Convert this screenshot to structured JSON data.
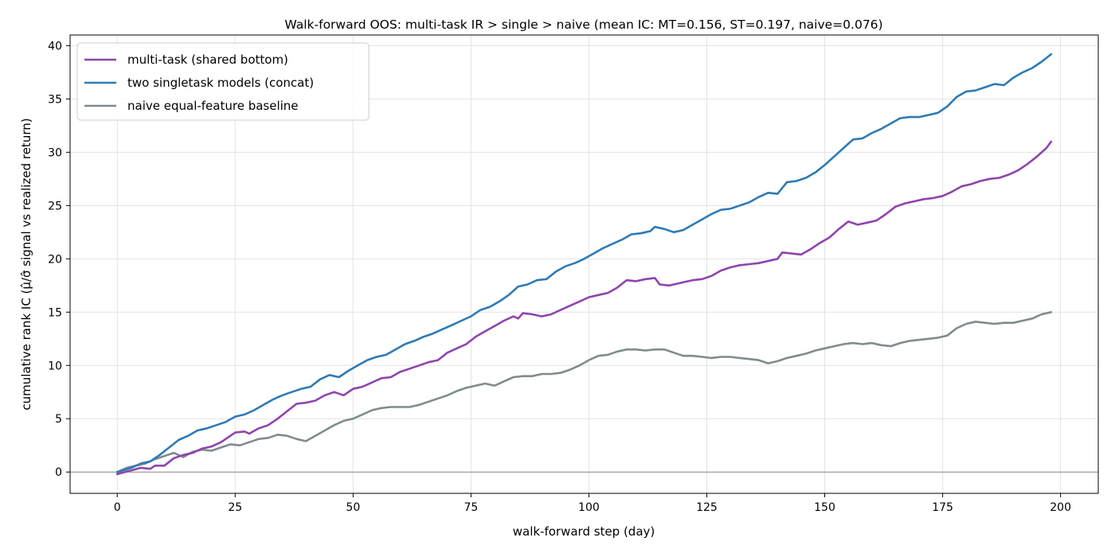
{
  "chart_data": {
    "type": "line",
    "title": "Walk-forward OOS: multi-task IR > single > naive (mean IC: MT=0.156, ST=0.197, naive=0.076)",
    "xlabel": "walk-forward step (day)",
    "ylabel": "cumulative rank IC (μ̂/σ̂ signal vs realized return)",
    "xlim": [
      -10,
      208
    ],
    "ylim": [
      -2,
      41
    ],
    "xticks": [
      0,
      25,
      50,
      75,
      100,
      125,
      150,
      175,
      200
    ],
    "yticks": [
      0,
      5,
      10,
      15,
      20,
      25,
      30,
      35,
      40
    ],
    "grid": true,
    "zero_line": true,
    "legend_position": "top-left",
    "series": [
      {
        "name": "multi-task (shared bottom)",
        "color": "#8e44ad",
        "points": [
          [
            0,
            -0.2
          ],
          [
            5,
            0.4
          ],
          [
            7,
            0.3
          ],
          [
            8,
            0.6
          ],
          [
            10,
            0.6
          ],
          [
            12,
            1.3
          ],
          [
            14,
            1.6
          ],
          [
            16,
            1.8
          ],
          [
            18,
            2.2
          ],
          [
            20,
            2.4
          ],
          [
            22,
            2.8
          ],
          [
            25,
            3.7
          ],
          [
            27,
            3.8
          ],
          [
            28,
            3.6
          ],
          [
            30,
            4.1
          ],
          [
            32,
            4.4
          ],
          [
            34,
            5.0
          ],
          [
            36,
            5.7
          ],
          [
            38,
            6.4
          ],
          [
            40,
            6.5
          ],
          [
            42,
            6.7
          ],
          [
            44,
            7.2
          ],
          [
            46,
            7.5
          ],
          [
            48,
            7.2
          ],
          [
            50,
            7.8
          ],
          [
            52,
            8.0
          ],
          [
            54,
            8.4
          ],
          [
            56,
            8.8
          ],
          [
            58,
            8.9
          ],
          [
            60,
            9.4
          ],
          [
            62,
            9.7
          ],
          [
            64,
            10.0
          ],
          [
            66,
            10.3
          ],
          [
            68,
            10.5
          ],
          [
            70,
            11.2
          ],
          [
            72,
            11.6
          ],
          [
            74,
            12.0
          ],
          [
            76,
            12.7
          ],
          [
            78,
            13.2
          ],
          [
            80,
            13.7
          ],
          [
            82,
            14.2
          ],
          [
            84,
            14.6
          ],
          [
            85,
            14.4
          ],
          [
            86,
            14.9
          ],
          [
            88,
            14.8
          ],
          [
            90,
            14.6
          ],
          [
            92,
            14.8
          ],
          [
            94,
            15.2
          ],
          [
            96,
            15.6
          ],
          [
            98,
            16.0
          ],
          [
            100,
            16.4
          ],
          [
            102,
            16.6
          ],
          [
            104,
            16.8
          ],
          [
            106,
            17.3
          ],
          [
            108,
            18.0
          ],
          [
            110,
            17.9
          ],
          [
            112,
            18.1
          ],
          [
            114,
            18.2
          ],
          [
            115,
            17.6
          ],
          [
            117,
            17.5
          ],
          [
            119,
            17.7
          ],
          [
            122,
            18.0
          ],
          [
            124,
            18.1
          ],
          [
            126,
            18.4
          ],
          [
            128,
            18.9
          ],
          [
            130,
            19.2
          ],
          [
            132,
            19.4
          ],
          [
            134,
            19.5
          ],
          [
            136,
            19.6
          ],
          [
            138,
            19.8
          ],
          [
            140,
            20.0
          ],
          [
            141,
            20.6
          ],
          [
            143,
            20.5
          ],
          [
            145,
            20.4
          ],
          [
            147,
            20.9
          ],
          [
            149,
            21.5
          ],
          [
            151,
            22.0
          ],
          [
            153,
            22.8
          ],
          [
            155,
            23.5
          ],
          [
            157,
            23.2
          ],
          [
            159,
            23.4
          ],
          [
            161,
            23.6
          ],
          [
            163,
            24.2
          ],
          [
            165,
            24.9
          ],
          [
            167,
            25.2
          ],
          [
            169,
            25.4
          ],
          [
            171,
            25.6
          ],
          [
            173,
            25.7
          ],
          [
            175,
            25.9
          ],
          [
            177,
            26.3
          ],
          [
            179,
            26.8
          ],
          [
            181,
            27.0
          ],
          [
            183,
            27.3
          ],
          [
            185,
            27.5
          ],
          [
            187,
            27.6
          ],
          [
            189,
            27.9
          ],
          [
            191,
            28.3
          ],
          [
            193,
            28.9
          ],
          [
            195,
            29.6
          ],
          [
            197,
            30.4
          ],
          [
            198,
            31.0
          ]
        ]
      },
      {
        "name": "two singletask models (concat)",
        "color": "#2e7ab5",
        "points": [
          [
            0,
            0
          ],
          [
            3,
            0.4
          ],
          [
            5,
            0.8
          ],
          [
            7,
            1.0
          ],
          [
            9,
            1.6
          ],
          [
            11,
            2.3
          ],
          [
            13,
            3.0
          ],
          [
            15,
            3.4
          ],
          [
            17,
            3.9
          ],
          [
            19,
            4.1
          ],
          [
            21,
            4.4
          ],
          [
            23,
            4.7
          ],
          [
            25,
            5.2
          ],
          [
            27,
            5.4
          ],
          [
            29,
            5.8
          ],
          [
            31,
            6.3
          ],
          [
            33,
            6.8
          ],
          [
            35,
            7.2
          ],
          [
            37,
            7.5
          ],
          [
            39,
            7.8
          ],
          [
            41,
            8.0
          ],
          [
            43,
            8.7
          ],
          [
            45,
            9.1
          ],
          [
            47,
            8.9
          ],
          [
            49,
            9.5
          ],
          [
            51,
            10.0
          ],
          [
            53,
            10.5
          ],
          [
            55,
            10.8
          ],
          [
            57,
            11.0
          ],
          [
            59,
            11.5
          ],
          [
            61,
            12.0
          ],
          [
            63,
            12.3
          ],
          [
            65,
            12.7
          ],
          [
            67,
            13.0
          ],
          [
            69,
            13.4
          ],
          [
            71,
            13.8
          ],
          [
            73,
            14.2
          ],
          [
            75,
            14.6
          ],
          [
            77,
            15.2
          ],
          [
            79,
            15.5
          ],
          [
            81,
            16.0
          ],
          [
            83,
            16.6
          ],
          [
            85,
            17.4
          ],
          [
            87,
            17.6
          ],
          [
            89,
            18.0
          ],
          [
            91,
            18.1
          ],
          [
            93,
            18.8
          ],
          [
            95,
            19.3
          ],
          [
            97,
            19.6
          ],
          [
            99,
            20.0
          ],
          [
            101,
            20.5
          ],
          [
            103,
            21.0
          ],
          [
            105,
            21.4
          ],
          [
            107,
            21.8
          ],
          [
            109,
            22.3
          ],
          [
            111,
            22.4
          ],
          [
            113,
            22.6
          ],
          [
            114,
            23.0
          ],
          [
            116,
            22.8
          ],
          [
            118,
            22.5
          ],
          [
            120,
            22.7
          ],
          [
            122,
            23.2
          ],
          [
            124,
            23.7
          ],
          [
            126,
            24.2
          ],
          [
            128,
            24.6
          ],
          [
            130,
            24.7
          ],
          [
            132,
            25.0
          ],
          [
            134,
            25.3
          ],
          [
            136,
            25.8
          ],
          [
            138,
            26.2
          ],
          [
            140,
            26.1
          ],
          [
            142,
            27.2
          ],
          [
            144,
            27.3
          ],
          [
            146,
            27.6
          ],
          [
            148,
            28.1
          ],
          [
            150,
            28.8
          ],
          [
            152,
            29.6
          ],
          [
            154,
            30.4
          ],
          [
            156,
            31.2
          ],
          [
            158,
            31.3
          ],
          [
            160,
            31.8
          ],
          [
            162,
            32.2
          ],
          [
            164,
            32.7
          ],
          [
            166,
            33.2
          ],
          [
            168,
            33.3
          ],
          [
            170,
            33.3
          ],
          [
            172,
            33.5
          ],
          [
            174,
            33.7
          ],
          [
            176,
            34.3
          ],
          [
            178,
            35.2
          ],
          [
            180,
            35.7
          ],
          [
            182,
            35.8
          ],
          [
            184,
            36.1
          ],
          [
            186,
            36.4
          ],
          [
            188,
            36.3
          ],
          [
            190,
            37.0
          ],
          [
            192,
            37.5
          ],
          [
            194,
            37.9
          ],
          [
            196,
            38.5
          ],
          [
            198,
            39.2
          ]
        ]
      },
      {
        "name": "naive equal-feature baseline",
        "color": "#7f8c8d",
        "points": [
          [
            0,
            0
          ],
          [
            2,
            0.4
          ],
          [
            4,
            0.6
          ],
          [
            6,
            0.8
          ],
          [
            8,
            1.2
          ],
          [
            10,
            1.5
          ],
          [
            12,
            1.8
          ],
          [
            14,
            1.4
          ],
          [
            16,
            1.9
          ],
          [
            18,
            2.1
          ],
          [
            20,
            2.0
          ],
          [
            22,
            2.3
          ],
          [
            24,
            2.6
          ],
          [
            26,
            2.5
          ],
          [
            28,
            2.8
          ],
          [
            30,
            3.1
          ],
          [
            32,
            3.2
          ],
          [
            34,
            3.5
          ],
          [
            36,
            3.4
          ],
          [
            38,
            3.1
          ],
          [
            40,
            2.9
          ],
          [
            42,
            3.4
          ],
          [
            44,
            3.9
          ],
          [
            46,
            4.4
          ],
          [
            48,
            4.8
          ],
          [
            50,
            5.0
          ],
          [
            52,
            5.4
          ],
          [
            54,
            5.8
          ],
          [
            56,
            6.0
          ],
          [
            58,
            6.1
          ],
          [
            60,
            6.1
          ],
          [
            62,
            6.1
          ],
          [
            64,
            6.3
          ],
          [
            66,
            6.6
          ],
          [
            68,
            6.9
          ],
          [
            70,
            7.2
          ],
          [
            72,
            7.6
          ],
          [
            74,
            7.9
          ],
          [
            76,
            8.1
          ],
          [
            78,
            8.3
          ],
          [
            80,
            8.1
          ],
          [
            82,
            8.5
          ],
          [
            84,
            8.9
          ],
          [
            86,
            9.0
          ],
          [
            88,
            9.0
          ],
          [
            90,
            9.2
          ],
          [
            92,
            9.2
          ],
          [
            94,
            9.3
          ],
          [
            96,
            9.6
          ],
          [
            98,
            10.0
          ],
          [
            100,
            10.5
          ],
          [
            102,
            10.9
          ],
          [
            104,
            11.0
          ],
          [
            106,
            11.3
          ],
          [
            108,
            11.5
          ],
          [
            110,
            11.5
          ],
          [
            112,
            11.4
          ],
          [
            114,
            11.5
          ],
          [
            116,
            11.5
          ],
          [
            118,
            11.2
          ],
          [
            120,
            10.9
          ],
          [
            122,
            10.9
          ],
          [
            124,
            10.8
          ],
          [
            126,
            10.7
          ],
          [
            128,
            10.8
          ],
          [
            130,
            10.8
          ],
          [
            132,
            10.7
          ],
          [
            134,
            10.6
          ],
          [
            136,
            10.5
          ],
          [
            138,
            10.2
          ],
          [
            140,
            10.4
          ],
          [
            142,
            10.7
          ],
          [
            144,
            10.9
          ],
          [
            146,
            11.1
          ],
          [
            148,
            11.4
          ],
          [
            150,
            11.6
          ],
          [
            152,
            11.8
          ],
          [
            154,
            12.0
          ],
          [
            156,
            12.1
          ],
          [
            158,
            12.0
          ],
          [
            160,
            12.1
          ],
          [
            162,
            11.9
          ],
          [
            164,
            11.8
          ],
          [
            166,
            12.1
          ],
          [
            168,
            12.3
          ],
          [
            170,
            12.4
          ],
          [
            172,
            12.5
          ],
          [
            174,
            12.6
          ],
          [
            176,
            12.8
          ],
          [
            178,
            13.5
          ],
          [
            180,
            13.9
          ],
          [
            182,
            14.1
          ],
          [
            184,
            14.0
          ],
          [
            186,
            13.9
          ],
          [
            188,
            14.0
          ],
          [
            190,
            14.0
          ],
          [
            192,
            14.2
          ],
          [
            194,
            14.4
          ],
          [
            196,
            14.8
          ],
          [
            198,
            15.0
          ]
        ]
      }
    ]
  }
}
